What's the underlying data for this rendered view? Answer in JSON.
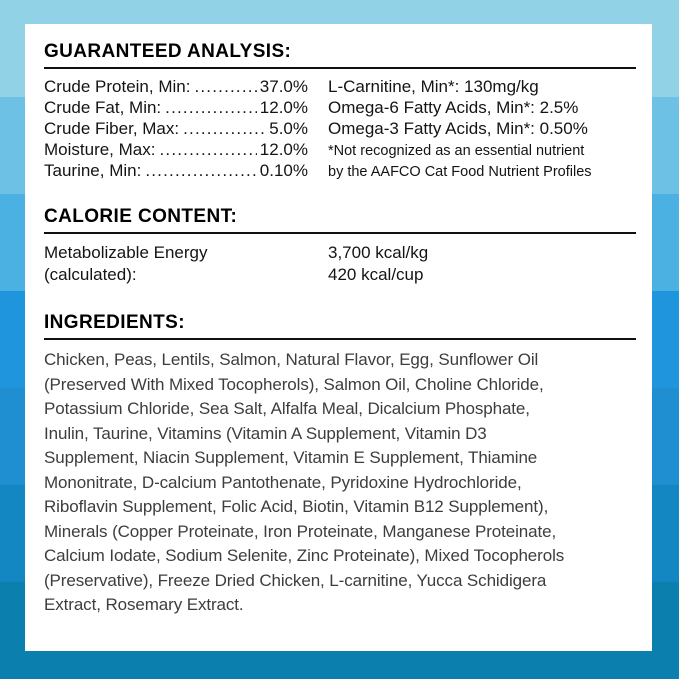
{
  "background": {
    "stripe_colors": [
      "#92d2e6",
      "#6cc1e5",
      "#4bb1e3",
      "#1f95dd",
      "#1f8fd1",
      "#1287c1",
      "#0b7fad"
    ]
  },
  "panel": {
    "guaranteed_analysis": {
      "title": "GUARANTEED ANALYSIS:",
      "left_rows": [
        {
          "label": "Crude Protein, Min:",
          "value": "37.0%"
        },
        {
          "label": "Crude Fat, Min:",
          "value": "12.0%"
        },
        {
          "label": "Crude Fiber, Max:",
          "value": "5.0%"
        },
        {
          "label": "Moisture, Max:",
          "value": "12.0%"
        },
        {
          "label": "Taurine, Min:",
          "value": "0.10%"
        }
      ],
      "right_rows": [
        "L-Carnitine, Min*: 130mg/kg",
        "Omega-6 Fatty Acids, Min*: 2.5%",
        "Omega-3 Fatty Acids, Min*: 0.50%"
      ],
      "footnote_lines": [
        "*Not recognized as an essential nutrient",
        "by the AAFCO Cat Food Nutrient Profiles"
      ]
    },
    "calorie_content": {
      "title": "CALORIE CONTENT:",
      "label_lines": [
        "Metabolizable Energy",
        "(calculated):"
      ],
      "value_lines": [
        "3,700 kcal/kg",
        "420 kcal/cup"
      ]
    },
    "ingredients": {
      "title": "INGREDIENTS:",
      "text": "Chicken, Peas, Lentils, Salmon, Natural Flavor, Egg, Sunflower Oil\n(Preserved With Mixed Tocopherols), Salmon Oil, Choline Chloride,\nPotassium Chloride, Sea Salt, Alfalfa Meal, Dicalcium Phosphate,\nInulin, Taurine, Vitamins (Vitamin A Supplement, Vitamin D3\nSupplement, Niacin Supplement, Vitamin E Supplement, Thiamine\nMononitrate, D-calcium Pantothenate, Pyridoxine Hydrochloride,\nRiboflavin Supplement, Folic Acid, Biotin, Vitamin B12 Supplement),\nMinerals (Copper Proteinate, Iron Proteinate, Manganese Proteinate,\nCalcium Iodate, Sodium Selenite, Zinc Proteinate), Mixed Tocopherols\n(Preservative), Freeze Dried Chicken, L-carnitine, Yucca Schidigera\nExtract, Rosemary Extract."
    }
  }
}
